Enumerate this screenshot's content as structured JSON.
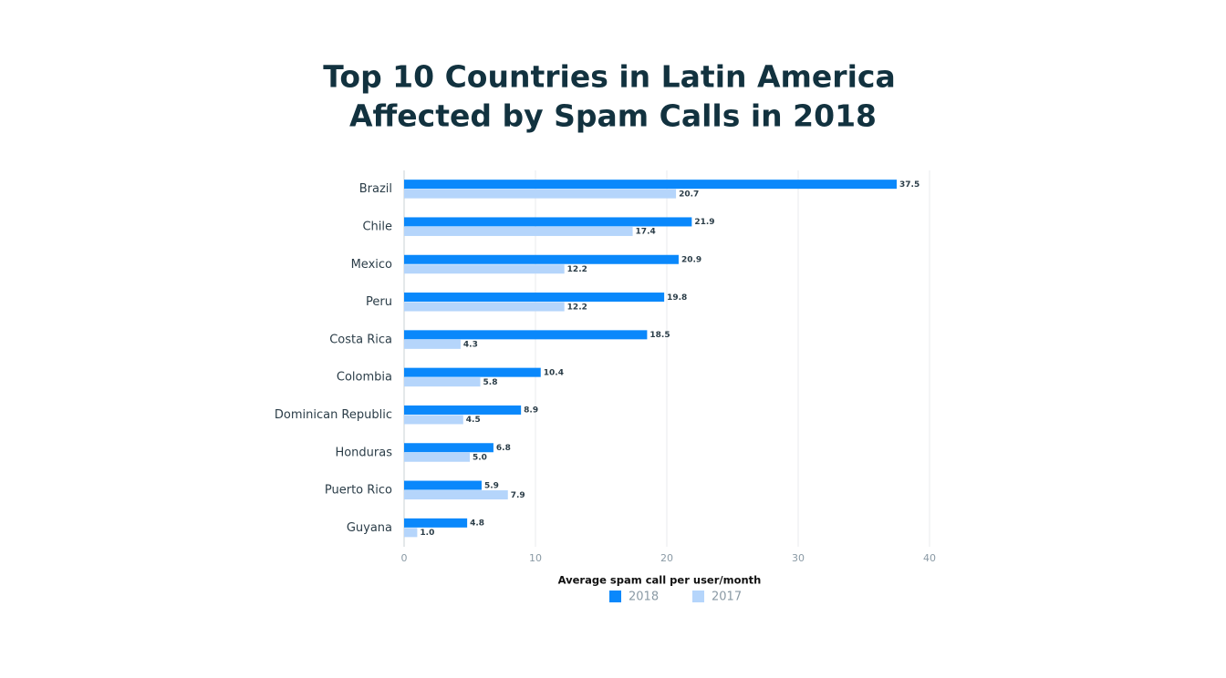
{
  "chart_data": {
    "type": "bar",
    "orientation": "horizontal",
    "title": [
      "Top 10 Countries in Latin America",
      "Affected by Spam Calls in 2018"
    ],
    "x_label": "Average spam call per user/month",
    "categories": [
      "Brazil",
      "Chile",
      "Mexico",
      "Peru",
      "Costa Rica",
      "Colombia",
      "Dominican Republic",
      "Honduras",
      "Puerto Rico",
      "Guyana"
    ],
    "series": [
      {
        "name": "2018",
        "color": "#0a88fb",
        "values": [
          37.5,
          21.9,
          20.9,
          19.8,
          18.5,
          10.4,
          8.9,
          6.8,
          5.9,
          4.8
        ],
        "value_labels": [
          "37.5",
          "21.9",
          "20.9",
          "19.8",
          "18.5",
          "10.4",
          "8.9",
          "6.8",
          "5.9",
          "4.8"
        ]
      },
      {
        "name": "2017",
        "color": "#b5d5fb",
        "values": [
          20.7,
          17.4,
          12.2,
          12.2,
          4.3,
          5.8,
          4.5,
          5.0,
          7.9,
          1.0
        ],
        "value_labels": [
          "20.7",
          "17.4",
          "12.2",
          "12.2",
          "4.3",
          "5.8",
          "4.5",
          "5.0",
          "7.9",
          "1.0"
        ]
      }
    ],
    "xlim": [
      0,
      40
    ],
    "xticks": [
      0,
      10,
      20,
      30,
      40
    ],
    "grid": true,
    "legend": "bottom"
  }
}
